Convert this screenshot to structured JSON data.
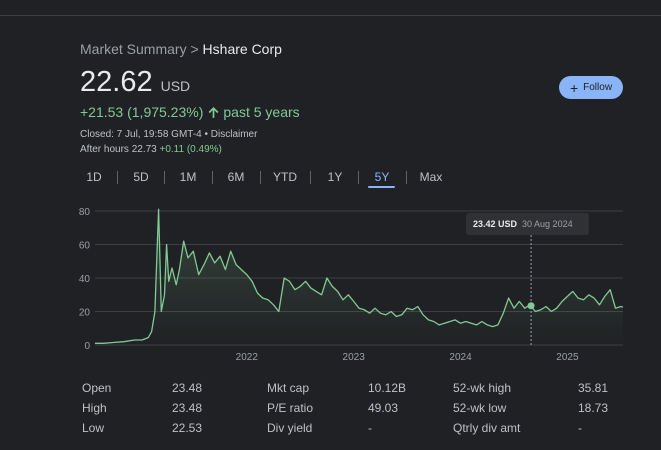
{
  "breadcrumb": {
    "parent": "Market Summary",
    "separator": ">",
    "company": "Hshare Corp"
  },
  "quote": {
    "price": "22.62",
    "currency": "USD",
    "change": "+21.53 (1,975.23%)",
    "period": "past 5 years",
    "closed_text": "Closed: 7 Jul, 19:58 GMT-4 • Disclaimer",
    "after_hours_label": "After hours 22.73",
    "after_hours_change": "+0.11 (0.49%)"
  },
  "follow_button": {
    "label": "Follow",
    "icon": "plus-icon"
  },
  "tabs": [
    {
      "label": "1D",
      "active": false
    },
    {
      "label": "5D",
      "active": false
    },
    {
      "label": "1M",
      "active": false
    },
    {
      "label": "6M",
      "active": false
    },
    {
      "label": "YTD",
      "active": false
    },
    {
      "label": "1Y",
      "active": false
    },
    {
      "label": "5Y",
      "active": true
    },
    {
      "label": "Max",
      "active": false
    }
  ],
  "tooltip": {
    "price": "23.42 USD",
    "date": "30 Aug 2024"
  },
  "chart_data": {
    "type": "line",
    "y_ticks": [
      "80",
      "60",
      "40",
      "20",
      "0"
    ],
    "x_ticks": [
      "2022",
      "2023",
      "2024",
      "2025"
    ],
    "ylim": [
      0,
      80
    ],
    "line_color": "#81c995",
    "series": [
      {
        "values": [
          [
            2020.58,
            1
          ],
          [
            2020.66,
            1
          ],
          [
            2020.75,
            1.5
          ],
          [
            2020.85,
            2
          ],
          [
            2020.95,
            3
          ],
          [
            2021.02,
            3
          ],
          [
            2021.08,
            4.5
          ],
          [
            2021.11,
            8
          ],
          [
            2021.14,
            20
          ],
          [
            2021.16,
            55
          ],
          [
            2021.175,
            81
          ],
          [
            2021.19,
            45
          ],
          [
            2021.2,
            20
          ],
          [
            2021.23,
            30
          ],
          [
            2021.25,
            60
          ],
          [
            2021.27,
            38
          ],
          [
            2021.3,
            46
          ],
          [
            2021.34,
            36
          ],
          [
            2021.37,
            45
          ],
          [
            2021.41,
            62
          ],
          [
            2021.45,
            52
          ],
          [
            2021.5,
            56
          ],
          [
            2021.55,
            42
          ],
          [
            2021.6,
            48
          ],
          [
            2021.65,
            55
          ],
          [
            2021.7,
            49
          ],
          [
            2021.75,
            53
          ],
          [
            2021.8,
            45
          ],
          [
            2021.85,
            56
          ],
          [
            2021.9,
            48
          ],
          [
            2021.95,
            45
          ],
          [
            2022.0,
            42
          ],
          [
            2022.05,
            38
          ],
          [
            2022.1,
            31
          ],
          [
            2022.15,
            28
          ],
          [
            2022.2,
            27
          ],
          [
            2022.25,
            24
          ],
          [
            2022.3,
            20
          ],
          [
            2022.35,
            40
          ],
          [
            2022.4,
            38
          ],
          [
            2022.45,
            33
          ],
          [
            2022.5,
            35
          ],
          [
            2022.55,
            38
          ],
          [
            2022.6,
            34
          ],
          [
            2022.65,
            32
          ],
          [
            2022.7,
            30
          ],
          [
            2022.75,
            40
          ],
          [
            2022.8,
            35
          ],
          [
            2022.85,
            32
          ],
          [
            2022.9,
            27
          ],
          [
            2022.95,
            30
          ],
          [
            2023.0,
            26
          ],
          [
            2023.05,
            22
          ],
          [
            2023.1,
            21
          ],
          [
            2023.15,
            19
          ],
          [
            2023.2,
            22
          ],
          [
            2023.25,
            19
          ],
          [
            2023.3,
            18
          ],
          [
            2023.35,
            20
          ],
          [
            2023.4,
            17
          ],
          [
            2023.45,
            18
          ],
          [
            2023.5,
            22
          ],
          [
            2023.55,
            21
          ],
          [
            2023.6,
            23
          ],
          [
            2023.65,
            18
          ],
          [
            2023.7,
            15
          ],
          [
            2023.75,
            14
          ],
          [
            2023.8,
            12
          ],
          [
            2023.85,
            13
          ],
          [
            2023.9,
            14
          ],
          [
            2023.95,
            15
          ],
          [
            2024.0,
            13
          ],
          [
            2024.05,
            14
          ],
          [
            2024.1,
            13
          ],
          [
            2024.15,
            12
          ],
          [
            2024.2,
            14
          ],
          [
            2024.25,
            12
          ],
          [
            2024.3,
            11
          ],
          [
            2024.35,
            12
          ],
          [
            2024.4,
            19
          ],
          [
            2024.45,
            28
          ],
          [
            2024.5,
            22
          ],
          [
            2024.55,
            26
          ],
          [
            2024.6,
            22
          ],
          [
            2024.65,
            24
          ],
          [
            2024.7,
            20
          ],
          [
            2024.75,
            21
          ],
          [
            2024.8,
            23
          ],
          [
            2024.85,
            20
          ],
          [
            2024.9,
            22
          ],
          [
            2024.95,
            26
          ],
          [
            2025.0,
            29
          ],
          [
            2025.05,
            32
          ],
          [
            2025.1,
            28
          ],
          [
            2025.15,
            27
          ],
          [
            2025.2,
            30
          ],
          [
            2025.25,
            28
          ],
          [
            2025.3,
            24
          ],
          [
            2025.35,
            29
          ],
          [
            2025.4,
            33
          ],
          [
            2025.45,
            22
          ],
          [
            2025.5,
            23
          ],
          [
            2025.52,
            22.62
          ]
        ]
      }
    ],
    "marker": {
      "x": 2024.66,
      "y": 23.42
    }
  },
  "stats": {
    "col1": [
      {
        "label": "Open",
        "value": "23.48"
      },
      {
        "label": "High",
        "value": "23.48"
      },
      {
        "label": "Low",
        "value": "22.53"
      }
    ],
    "col2": [
      {
        "label": "Mkt cap",
        "value": "10.12B"
      },
      {
        "label": "P/E ratio",
        "value": "49.03"
      },
      {
        "label": "Div yield",
        "value": "-"
      }
    ],
    "col3": [
      {
        "label": "52-wk high",
        "value": "35.81"
      },
      {
        "label": "52-wk low",
        "value": "18.73"
      },
      {
        "label": "Qtrly div amt",
        "value": "-"
      }
    ]
  }
}
